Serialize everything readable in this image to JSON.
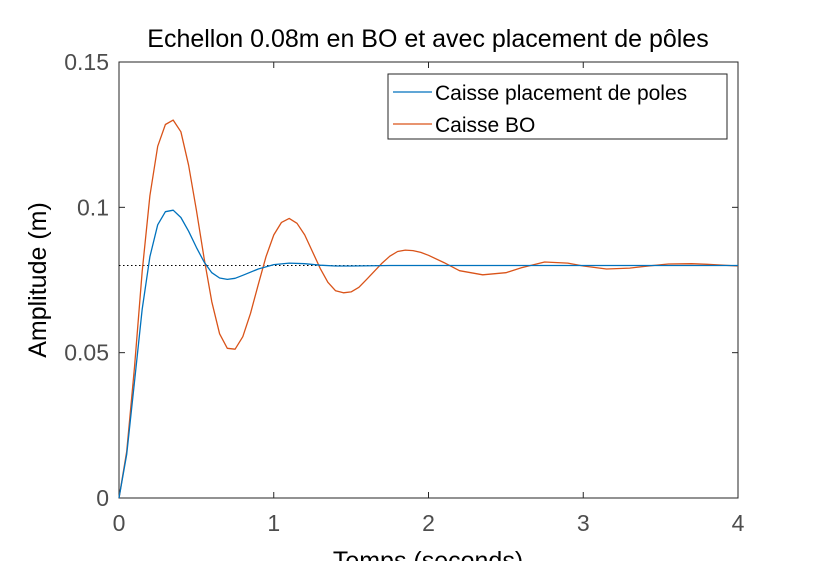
{
  "chart_data": {
    "type": "line",
    "title": "Echellon 0.08m en BO et avec placement de pôles",
    "xlabel": "Temps (seconds)",
    "ylabel": "Amplitude (m)",
    "xlim": [
      0,
      4
    ],
    "ylim": [
      0,
      0.15
    ],
    "xticks": [
      "0",
      "1",
      "2",
      "3",
      "4"
    ],
    "yticks": [
      "0",
      "0.05",
      "0.1",
      "0.15"
    ],
    "grid": false,
    "legend_position": "top-right",
    "reference_line": {
      "y": 0.08,
      "style": "dotted"
    },
    "colors": {
      "placement": "#0072BD",
      "bo": "#D95319",
      "axis": "#262626"
    },
    "series": [
      {
        "name": "Caisse placement de poles",
        "color": "#0072BD",
        "x": [
          0,
          0.05,
          0.1,
          0.15,
          0.2,
          0.25,
          0.3,
          0.35,
          0.4,
          0.45,
          0.5,
          0.55,
          0.6,
          0.65,
          0.7,
          0.75,
          0.8,
          0.9,
          1.0,
          1.1,
          1.2,
          1.3,
          1.4,
          1.5,
          1.75,
          2.0,
          2.5,
          3.0,
          3.5,
          4.0
        ],
        "y": [
          0,
          0.015,
          0.04,
          0.065,
          0.083,
          0.094,
          0.0985,
          0.099,
          0.0965,
          0.0918,
          0.0862,
          0.0812,
          0.0775,
          0.0757,
          0.0752,
          0.0756,
          0.0766,
          0.0788,
          0.0803,
          0.0808,
          0.0806,
          0.0801,
          0.0798,
          0.0798,
          0.08,
          0.08,
          0.08,
          0.08,
          0.08,
          0.08
        ]
      },
      {
        "name": "Caisse BO",
        "color": "#D95319",
        "x": [
          0,
          0.05,
          0.1,
          0.15,
          0.2,
          0.25,
          0.3,
          0.35,
          0.4,
          0.45,
          0.5,
          0.55,
          0.6,
          0.65,
          0.7,
          0.75,
          0.8,
          0.85,
          0.9,
          0.95,
          1.0,
          1.05,
          1.1,
          1.15,
          1.2,
          1.25,
          1.3,
          1.35,
          1.4,
          1.45,
          1.5,
          1.55,
          1.6,
          1.65,
          1.7,
          1.75,
          1.8,
          1.85,
          1.9,
          1.95,
          2.0,
          2.1,
          2.2,
          2.35,
          2.5,
          2.6,
          2.75,
          2.9,
          3.0,
          3.15,
          3.3,
          3.4,
          3.55,
          3.7,
          3.8,
          4.0
        ],
        "y": [
          0,
          0.016,
          0.045,
          0.078,
          0.104,
          0.121,
          0.1285,
          0.13,
          0.126,
          0.1145,
          0.099,
          0.0825,
          0.0675,
          0.0565,
          0.0515,
          0.0512,
          0.0555,
          0.0635,
          0.0735,
          0.083,
          0.0905,
          0.0948,
          0.0962,
          0.0945,
          0.0905,
          0.0848,
          0.079,
          0.0742,
          0.0713,
          0.0706,
          0.0709,
          0.0725,
          0.0752,
          0.078,
          0.0808,
          0.0832,
          0.0848,
          0.0853,
          0.0851,
          0.0845,
          0.0835,
          0.081,
          0.0782,
          0.0768,
          0.0775,
          0.0792,
          0.0812,
          0.0808,
          0.0798,
          0.0788,
          0.0791,
          0.0797,
          0.0805,
          0.0806,
          0.0804,
          0.0798
        ]
      }
    ]
  }
}
